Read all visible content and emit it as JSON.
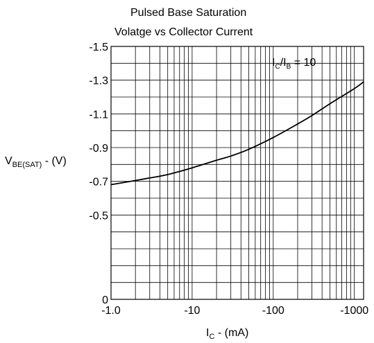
{
  "chart_data": {
    "type": "line",
    "title_line1": "Pulsed Base Saturation",
    "title_line2": "Volatge vs Collector Current",
    "xlabel": {
      "main": "I",
      "sub": "C",
      "rest": " - (mA)"
    },
    "ylabel": {
      "main": "V",
      "sub": "BE(SAT)",
      "rest": " - (V)"
    },
    "annotation": {
      "a": "I",
      "a_sub": "C",
      "mid": "/I",
      "b_sub": "B",
      "rest": " = 10"
    },
    "x_scale": "log",
    "xlim": [
      1,
      1300
    ],
    "ylim": [
      0,
      1.5
    ],
    "grid": true,
    "x_ticks": [
      {
        "value": 1,
        "label": "-1.0"
      },
      {
        "value": 10,
        "label": "-10"
      },
      {
        "value": 100,
        "label": "-100"
      },
      {
        "value": 1000,
        "label": "-1000"
      }
    ],
    "y_ticks": [
      {
        "value": 0,
        "label": "0"
      },
      {
        "value": 0.5,
        "label": "-0.5"
      },
      {
        "value": 0.7,
        "label": "-0.7"
      },
      {
        "value": 0.9,
        "label": "-0.9"
      },
      {
        "value": 1.1,
        "label": "-1.1"
      },
      {
        "value": 1.3,
        "label": "-1.3"
      },
      {
        "value": 1.5,
        "label": "-1.5"
      }
    ],
    "series": [
      {
        "color": "#000000",
        "x": [
          1,
          2,
          3,
          5,
          10,
          20,
          30,
          50,
          100,
          200,
          300,
          500,
          1000,
          1300
        ],
        "y": [
          0.68,
          0.705,
          0.72,
          0.74,
          0.78,
          0.825,
          0.85,
          0.89,
          0.96,
          1.04,
          1.09,
          1.16,
          1.25,
          1.29
        ]
      }
    ]
  }
}
